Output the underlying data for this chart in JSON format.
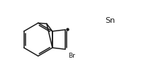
{
  "bg_color": "#ffffff",
  "line_color": "#1a1a1a",
  "text_color": "#1a1a1a",
  "lw": 1.1,
  "Sn_label": "Sn",
  "Br_label": "Br",
  "figsize": [
    2.13,
    1.11
  ],
  "dpi": 100,
  "xlim": [
    0,
    10
  ],
  "ylim": [
    0,
    5.2
  ]
}
